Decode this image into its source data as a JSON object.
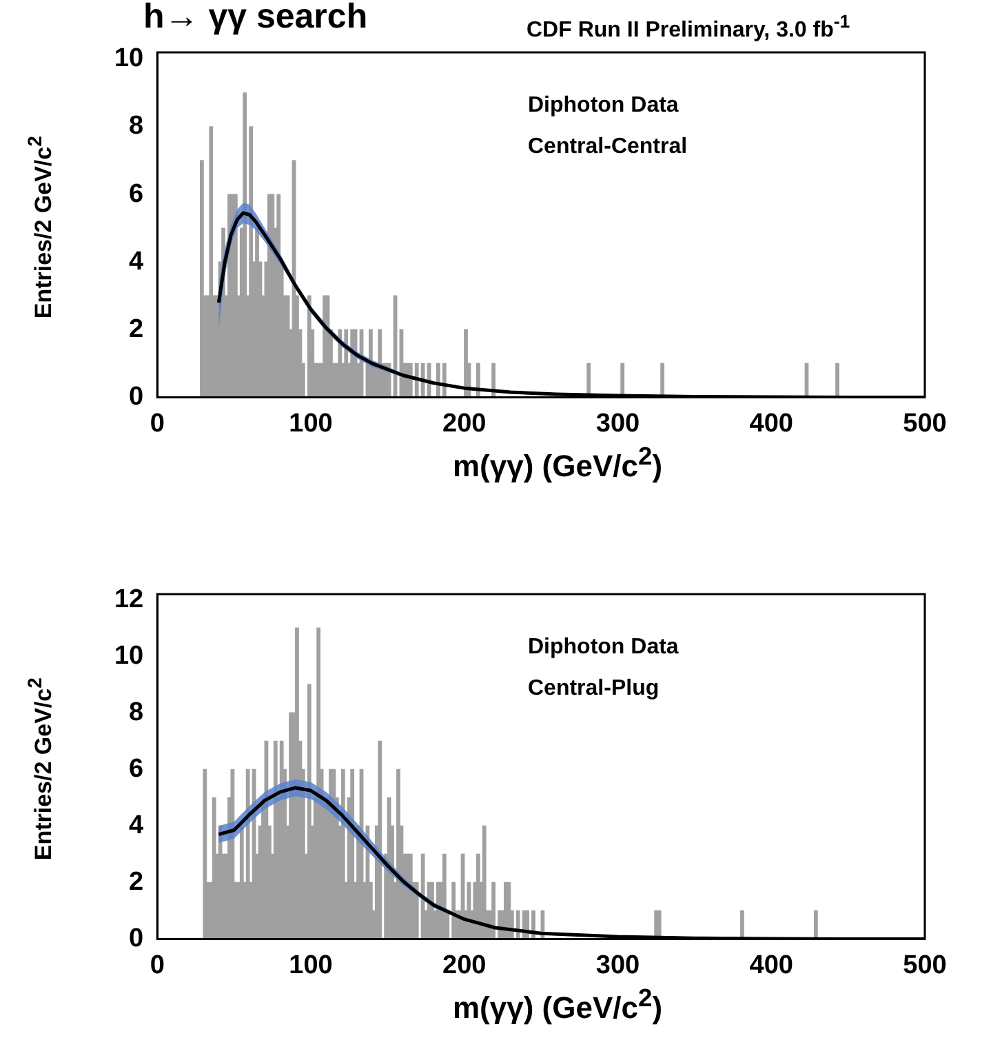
{
  "chart_data": [
    {
      "type": "histogram",
      "title": "h→ γγ search",
      "subtitle": "CDF Run II Preliminary, 3.0 fb$^{-1}$",
      "xlabel": "m(γγ) (GeV/c$^{2}$)",
      "ylabel": "Entries/2 GeV/c$^{2}$",
      "annotations": [
        "Diphoton Data",
        "Central-Central"
      ],
      "color": "#a0a0a0",
      "bins": [
        0,
        28,
        30,
        32,
        34,
        36,
        38,
        40,
        42,
        44,
        46,
        48,
        50,
        52,
        54,
        56,
        58,
        60,
        62,
        64,
        66,
        68,
        70,
        72,
        74,
        76,
        78,
        80,
        82,
        84,
        86,
        88,
        90,
        92,
        94,
        96,
        98,
        100,
        102,
        104,
        106,
        108,
        110,
        112,
        114,
        116,
        118,
        120,
        122,
        124,
        126,
        128,
        130,
        132,
        134,
        136,
        138,
        140,
        142,
        144,
        146,
        148,
        150,
        152,
        154,
        156,
        158,
        160,
        162,
        164,
        166,
        168,
        170,
        172,
        174,
        176,
        178,
        180,
        182,
        184,
        186,
        188,
        190,
        192,
        194,
        196,
        198,
        200,
        202,
        204,
        206,
        208,
        210,
        212,
        214,
        216,
        218,
        220,
        280,
        282,
        302,
        304,
        328,
        330,
        422,
        424,
        442,
        444,
        500
      ],
      "values": [
        0,
        7,
        3,
        3,
        8,
        3,
        3,
        4,
        5,
        3,
        6,
        6,
        6,
        3,
        5,
        9,
        3,
        8,
        4,
        5,
        4,
        3,
        4,
        6,
        6,
        5,
        6,
        4,
        3,
        3,
        2,
        7,
        3,
        2,
        1,
        0,
        3,
        2,
        1,
        1,
        1,
        3,
        3,
        2,
        1,
        1,
        2,
        1,
        2,
        1,
        2,
        2,
        1,
        2,
        0,
        1,
        2,
        1,
        1,
        2,
        1,
        1,
        1,
        0,
        3,
        0,
        2,
        1,
        1,
        1,
        0,
        1,
        0,
        1,
        0,
        1,
        0,
        0,
        1,
        0,
        1,
        0,
        0,
        0,
        0,
        0,
        0,
        2,
        1,
        0,
        0,
        1,
        0,
        0,
        0,
        0,
        1,
        0,
        1,
        0,
        1,
        0,
        1,
        0,
        1,
        0,
        1,
        0
      ],
      "series": [
        {
          "type": "line",
          "color": "#000000",
          "x": [
            40,
            44,
            48,
            52,
            56,
            60,
            64,
            70,
            80,
            90,
            100,
            110,
            120,
            130,
            140,
            160,
            180,
            200,
            230,
            260,
            300,
            350,
            400,
            450,
            500
          ],
          "values": [
            2.8,
            4.0,
            4.8,
            5.25,
            5.45,
            5.4,
            5.2,
            4.8,
            4.1,
            3.3,
            2.6,
            2.05,
            1.6,
            1.25,
            1.0,
            0.65,
            0.42,
            0.27,
            0.15,
            0.09,
            0.05,
            0.02,
            0.01,
            0,
            0
          ],
          "lower": [
            2.0,
            3.6,
            4.5,
            5.0,
            5.15,
            5.1,
            4.95,
            4.6,
            3.95,
            3.2,
            2.5,
            1.95,
            1.5,
            1.15,
            0.9,
            0.6,
            0.38,
            0.24,
            0.13,
            0.08,
            0.04,
            0.02,
            0.01,
            0,
            0
          ],
          "upper": [
            3.4,
            4.4,
            5.1,
            5.55,
            5.75,
            5.7,
            5.45,
            5.0,
            4.25,
            3.4,
            2.7,
            2.15,
            1.7,
            1.35,
            1.1,
            0.7,
            0.46,
            0.3,
            0.17,
            0.1,
            0.06,
            0.03,
            0.01,
            0.01,
            0
          ]
        }
      ],
      "xlim": [
        0,
        500
      ],
      "xticks": [
        0,
        100,
        200,
        300,
        400,
        500
      ],
      "ylim": [
        0,
        10.2
      ],
      "yticks": [
        0,
        2,
        4,
        6,
        8,
        10
      ],
      "grid": false,
      "legend": false
    },
    {
      "type": "histogram",
      "xlabel": "m(γγ) (GeV/c$^{2}$)",
      "ylabel": "Entries/2 GeV/c$^{2}$",
      "annotations": [
        "Diphoton Data",
        "Central-Plug"
      ],
      "color": "#a0a0a0",
      "bins": [
        0,
        30,
        32,
        34,
        36,
        38,
        40,
        42,
        44,
        46,
        48,
        50,
        52,
        54,
        56,
        58,
        60,
        62,
        64,
        66,
        68,
        70,
        72,
        74,
        76,
        78,
        80,
        82,
        84,
        86,
        88,
        90,
        92,
        94,
        96,
        98,
        100,
        102,
        104,
        106,
        108,
        110,
        112,
        114,
        116,
        118,
        120,
        122,
        124,
        126,
        128,
        130,
        132,
        134,
        136,
        138,
        140,
        142,
        144,
        146,
        148,
        150,
        152,
        154,
        156,
        158,
        160,
        162,
        164,
        166,
        168,
        170,
        172,
        174,
        176,
        178,
        180,
        182,
        184,
        186,
        188,
        190,
        192,
        194,
        196,
        198,
        200,
        202,
        204,
        206,
        208,
        210,
        212,
        214,
        216,
        218,
        220,
        222,
        224,
        226,
        228,
        230,
        232,
        234,
        236,
        238,
        240,
        242,
        244,
        246,
        248,
        250,
        252,
        254,
        256,
        258,
        260,
        262,
        264,
        266,
        268,
        270,
        324,
        326,
        328,
        380,
        382,
        428,
        430,
        500
      ],
      "values": [
        0,
        6,
        2,
        2,
        5,
        3,
        4,
        3,
        3,
        5,
        6,
        2,
        2,
        4,
        2,
        6,
        2,
        6,
        3,
        4,
        5,
        7,
        4,
        3,
        7,
        5,
        7,
        6,
        4,
        8,
        8,
        11,
        7,
        6,
        3,
        9,
        4,
        5,
        11,
        6,
        5,
        5,
        6,
        6,
        5,
        4,
        6,
        2,
        5,
        6,
        2,
        4,
        6,
        2,
        4,
        2,
        1,
        4,
        7,
        0,
        3,
        5,
        4,
        2,
        6,
        4,
        3,
        3,
        3,
        2,
        2,
        0,
        3,
        1,
        2,
        2,
        1,
        2,
        2,
        3,
        1,
        0,
        2,
        1,
        1,
        3,
        1,
        2,
        1,
        2,
        3,
        2,
        4,
        1,
        1,
        2,
        0,
        1,
        1,
        2,
        2,
        1,
        0,
        1,
        0,
        1,
        1,
        0,
        1,
        0,
        0,
        1,
        0,
        0,
        0,
        0,
        0,
        0,
        0,
        0,
        0,
        0,
        1,
        1,
        0,
        1,
        0,
        1,
        0
      ],
      "series": [
        {
          "type": "line",
          "color": "#000000",
          "x": [
            40,
            50,
            60,
            70,
            80,
            90,
            100,
            110,
            120,
            130,
            140,
            150,
            160,
            170,
            180,
            200,
            220,
            250,
            300,
            350,
            400,
            450,
            500
          ],
          "values": [
            3.7,
            3.85,
            4.4,
            4.9,
            5.2,
            5.35,
            5.25,
            4.9,
            4.4,
            3.8,
            3.2,
            2.6,
            2.05,
            1.6,
            1.2,
            0.7,
            0.4,
            0.2,
            0.08,
            0.03,
            0.01,
            0,
            0
          ],
          "lower": [
            3.4,
            3.55,
            4.1,
            4.6,
            4.9,
            5.05,
            4.95,
            4.6,
            4.1,
            3.5,
            2.95,
            2.4,
            1.9,
            1.5,
            1.1,
            0.65,
            0.37,
            0.18,
            0.07,
            0.03,
            0.01,
            0,
            0
          ],
          "upper": [
            4.0,
            4.15,
            4.7,
            5.2,
            5.5,
            5.65,
            5.55,
            5.2,
            4.7,
            4.1,
            3.45,
            2.8,
            2.2,
            1.7,
            1.3,
            0.75,
            0.43,
            0.22,
            0.09,
            0.03,
            0.01,
            0,
            0
          ]
        }
      ],
      "xlim": [
        0,
        500
      ],
      "xticks": [
        0,
        100,
        200,
        300,
        400,
        500
      ],
      "ylim": [
        0,
        12.2
      ],
      "yticks": [
        0,
        2,
        4,
        6,
        8,
        10,
        12
      ],
      "grid": false,
      "legend": false
    }
  ]
}
